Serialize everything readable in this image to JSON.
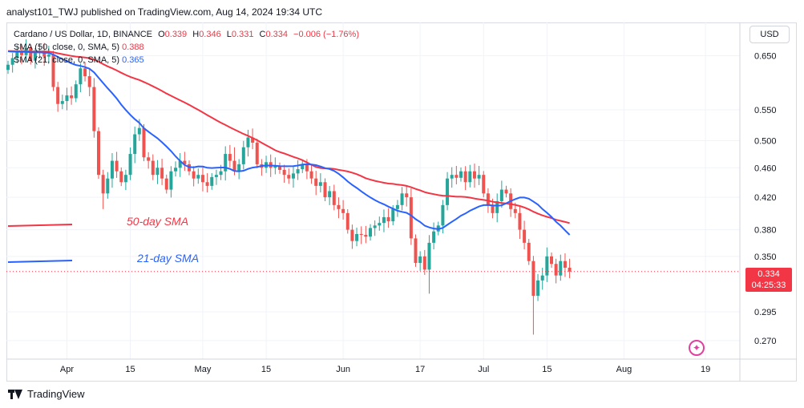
{
  "header": {
    "published": "analyst101_TWJ published on TradingView.com, Aug 14, 2024 19:34 UTC"
  },
  "legend": {
    "symbol": "Cardano / US Dollar, 1D, BINANCE",
    "ohlc": {
      "O": "0.339",
      "H": "0.346",
      "L": "0.331",
      "C": "0.334",
      "change": "−0.006 (−1.76%)"
    },
    "sma50_label": "SMA (50, close, 0, SMA, 5)",
    "sma50_value": "0.388",
    "sma21_label": "SMA (21, close, 0, SMA, 5)",
    "sma21_value": "0.365"
  },
  "currency": "USD",
  "price_tag": {
    "price": "0.334",
    "countdown": "04:25:33"
  },
  "footer": {
    "brand": "TradingView"
  },
  "colors": {
    "up": "#26a69a",
    "down": "#ef5350",
    "sma50": "#f23645",
    "sma21": "#2962ff"
  },
  "chart_data": {
    "type": "candlestick",
    "y_axis": {
      "scale": "log",
      "ylim": [
        0.255,
        0.72
      ],
      "ticks": [
        0.65,
        0.55,
        0.5,
        0.46,
        0.42,
        0.38,
        0.35,
        0.295,
        0.27
      ]
    },
    "x_ticks": [
      {
        "label": "Apr",
        "day": 13
      },
      {
        "label": "15",
        "day": 27
      },
      {
        "label": "May",
        "day": 43
      },
      {
        "label": "15",
        "day": 57
      },
      {
        "label": "Jun",
        "day": 74
      },
      {
        "label": "17",
        "day": 91
      },
      {
        "label": "Jul",
        "day": 105
      },
      {
        "label": "15",
        "day": 119
      },
      {
        "label": "Aug",
        "day": 136
      },
      {
        "label": "19",
        "day": 154
      }
    ],
    "annotations": [
      {
        "text": "50-day SMA",
        "color": "#f23645"
      },
      {
        "text": "21-day SMA",
        "color": "#2962ff"
      }
    ],
    "current_price": 0.334,
    "closes": [
      0.632,
      0.645,
      0.658,
      0.651,
      0.665,
      0.64,
      0.655,
      0.66,
      0.648,
      0.652,
      0.59,
      0.56,
      0.565,
      0.575,
      0.57,
      0.595,
      0.625,
      0.61,
      0.59,
      0.515,
      0.45,
      0.425,
      0.445,
      0.47,
      0.455,
      0.44,
      0.45,
      0.48,
      0.51,
      0.52,
      0.475,
      0.47,
      0.45,
      0.46,
      0.445,
      0.43,
      0.455,
      0.46,
      0.47,
      0.465,
      0.455,
      0.445,
      0.45,
      0.44,
      0.435,
      0.447,
      0.45,
      0.455,
      0.48,
      0.47,
      0.455,
      0.465,
      0.49,
      0.505,
      0.497,
      0.465,
      0.46,
      0.468,
      0.46,
      0.462,
      0.457,
      0.45,
      0.445,
      0.452,
      0.458,
      0.465,
      0.455,
      0.445,
      0.435,
      0.44,
      0.42,
      0.428,
      0.41,
      0.405,
      0.4,
      0.38,
      0.367,
      0.375,
      0.374,
      0.372,
      0.382,
      0.385,
      0.388,
      0.395,
      0.39,
      0.405,
      0.41,
      0.425,
      0.42,
      0.37,
      0.343,
      0.35,
      0.336,
      0.365,
      0.378,
      0.385,
      0.41,
      0.445,
      0.45,
      0.446,
      0.455,
      0.44,
      0.455,
      0.445,
      0.45,
      0.425,
      0.41,
      0.4,
      0.415,
      0.43,
      0.425,
      0.405,
      0.4,
      0.38,
      0.365,
      0.345,
      0.31,
      0.325,
      0.33,
      0.35,
      0.342,
      0.33,
      0.345,
      0.338,
      0.334
    ],
    "open_first": 0.622
  }
}
